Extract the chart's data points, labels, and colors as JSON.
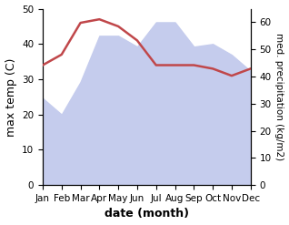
{
  "months": [
    "Jan",
    "Feb",
    "Mar",
    "Apr",
    "May",
    "Jun",
    "Jul",
    "Aug",
    "Sep",
    "Oct",
    "Nov",
    "Dec"
  ],
  "temperature": [
    34,
    37,
    46,
    47,
    45,
    41,
    34,
    34,
    34,
    33,
    31,
    33
  ],
  "precipitation": [
    32,
    26,
    38,
    55,
    55,
    51,
    60,
    60,
    51,
    52,
    48,
    42
  ],
  "temp_color": "#c0474a",
  "precip_fill_color": "#c5cced",
  "temp_ylim": [
    0,
    50
  ],
  "precip_ylim": [
    0,
    65
  ],
  "xlabel": "date (month)",
  "ylabel_left": "max temp (C)",
  "ylabel_right": "med. precipitation (kg/m2)",
  "tick_fontsize": 7.5,
  "label_fontsize": 9,
  "right_ticks": [
    0,
    10,
    20,
    30,
    40,
    50,
    60
  ],
  "left_ticks": [
    0,
    10,
    20,
    30,
    40,
    50
  ]
}
